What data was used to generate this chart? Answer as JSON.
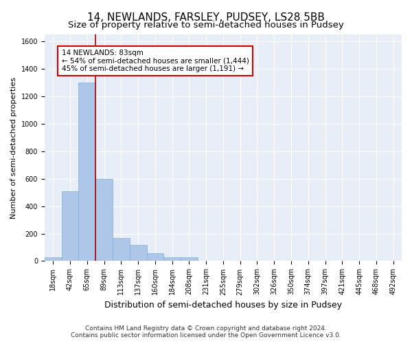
{
  "title": "14, NEWLANDS, FARSLEY, PUDSEY, LS28 5BB",
  "subtitle": "Size of property relative to semi-detached houses in Pudsey",
  "xlabel": "Distribution of semi-detached houses by size in Pudsey",
  "ylabel": "Number of semi-detached properties",
  "footer_line1": "Contains HM Land Registry data © Crown copyright and database right 2024.",
  "footer_line2": "Contains public sector information licensed under the Open Government Licence v3.0.",
  "bin_labels": [
    "18sqm",
    "42sqm",
    "65sqm",
    "89sqm",
    "113sqm",
    "137sqm",
    "160sqm",
    "184sqm",
    "208sqm",
    "231sqm",
    "255sqm",
    "279sqm",
    "302sqm",
    "326sqm",
    "350sqm",
    "374sqm",
    "397sqm",
    "421sqm",
    "445sqm",
    "468sqm",
    "492sqm"
  ],
  "bar_values": [
    25,
    510,
    1300,
    600,
    170,
    115,
    55,
    25,
    25,
    0,
    0,
    0,
    0,
    0,
    0,
    0,
    0,
    0,
    0,
    0,
    0
  ],
  "bar_color": "#aec6e8",
  "bar_edge_color": "#7bafd4",
  "background_color": "#e8eef7",
  "grid_color": "#ffffff",
  "vline_x": 2.5,
  "vline_color": "#aa0000",
  "ylim": [
    0,
    1650
  ],
  "yticks": [
    0,
    200,
    400,
    600,
    800,
    1000,
    1200,
    1400,
    1600
  ],
  "annotation_line1": "14 NEWLANDS: 83sqm",
  "annotation_line2": "← 54% of semi-detached houses are smaller (1,444)",
  "annotation_line3": "45% of semi-detached houses are larger (1,191) →",
  "annotation_box_color": "#ffffff",
  "annotation_border_color": "#cc0000",
  "title_fontsize": 11,
  "subtitle_fontsize": 9.5,
  "xlabel_fontsize": 9,
  "ylabel_fontsize": 8,
  "tick_fontsize": 7,
  "annotation_fontsize": 7.5,
  "footer_fontsize": 6.5
}
